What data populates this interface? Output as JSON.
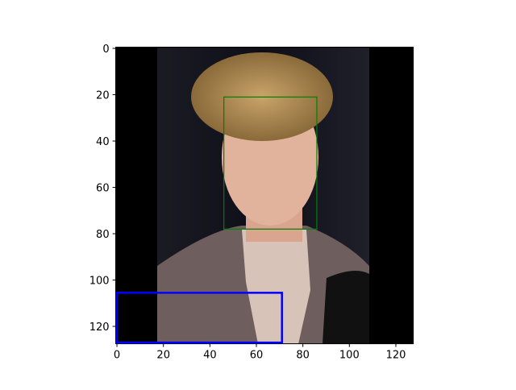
{
  "chart_data": {
    "type": "image",
    "xlim": [
      -0.5,
      127.5
    ],
    "ylim": [
      127.5,
      -0.5
    ],
    "xticks": [
      0,
      20,
      40,
      60,
      80,
      100,
      120
    ],
    "yticks": [
      0,
      20,
      40,
      60,
      80,
      100,
      120
    ],
    "boxes": [
      {
        "color": "#008000",
        "width": 1.2,
        "x": [
          46,
          86
        ],
        "y": [
          21,
          78
        ]
      },
      {
        "color": "#0000ff",
        "width": 2.5,
        "x": [
          0,
          71
        ],
        "y": [
          105.5,
          127
        ]
      }
    ]
  }
}
